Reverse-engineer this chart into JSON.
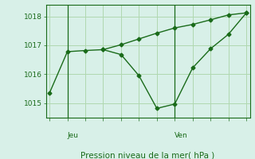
{
  "line1_x": [
    0,
    1,
    2,
    3,
    4,
    5,
    6,
    7,
    8,
    9,
    10,
    11
  ],
  "line1_y": [
    1015.35,
    1016.78,
    1016.82,
    1016.85,
    1016.68,
    1015.95,
    1014.82,
    1014.97,
    1016.22,
    1016.88,
    1017.38,
    1018.12
  ],
  "line2_x": [
    3,
    4,
    5,
    6,
    7,
    8,
    9,
    10,
    11
  ],
  "line2_y": [
    1016.85,
    1017.02,
    1017.22,
    1017.42,
    1017.6,
    1017.72,
    1017.88,
    1018.05,
    1018.12
  ],
  "jeu_x": 1,
  "ven_x": 7,
  "yticks": [
    1015,
    1016,
    1017,
    1018
  ],
  "ylim": [
    1014.5,
    1018.4
  ],
  "xlim": [
    -0.2,
    11.2
  ],
  "line_color": "#1a6b1a",
  "bg_color": "#d8f0e8",
  "grid_color": "#b0d8b0",
  "xlabel": "Pression niveau de la mer( hPa )",
  "tick_color": "#1a6b1a",
  "marker": "D",
  "marker_size": 2.5,
  "n_xticks": 12
}
